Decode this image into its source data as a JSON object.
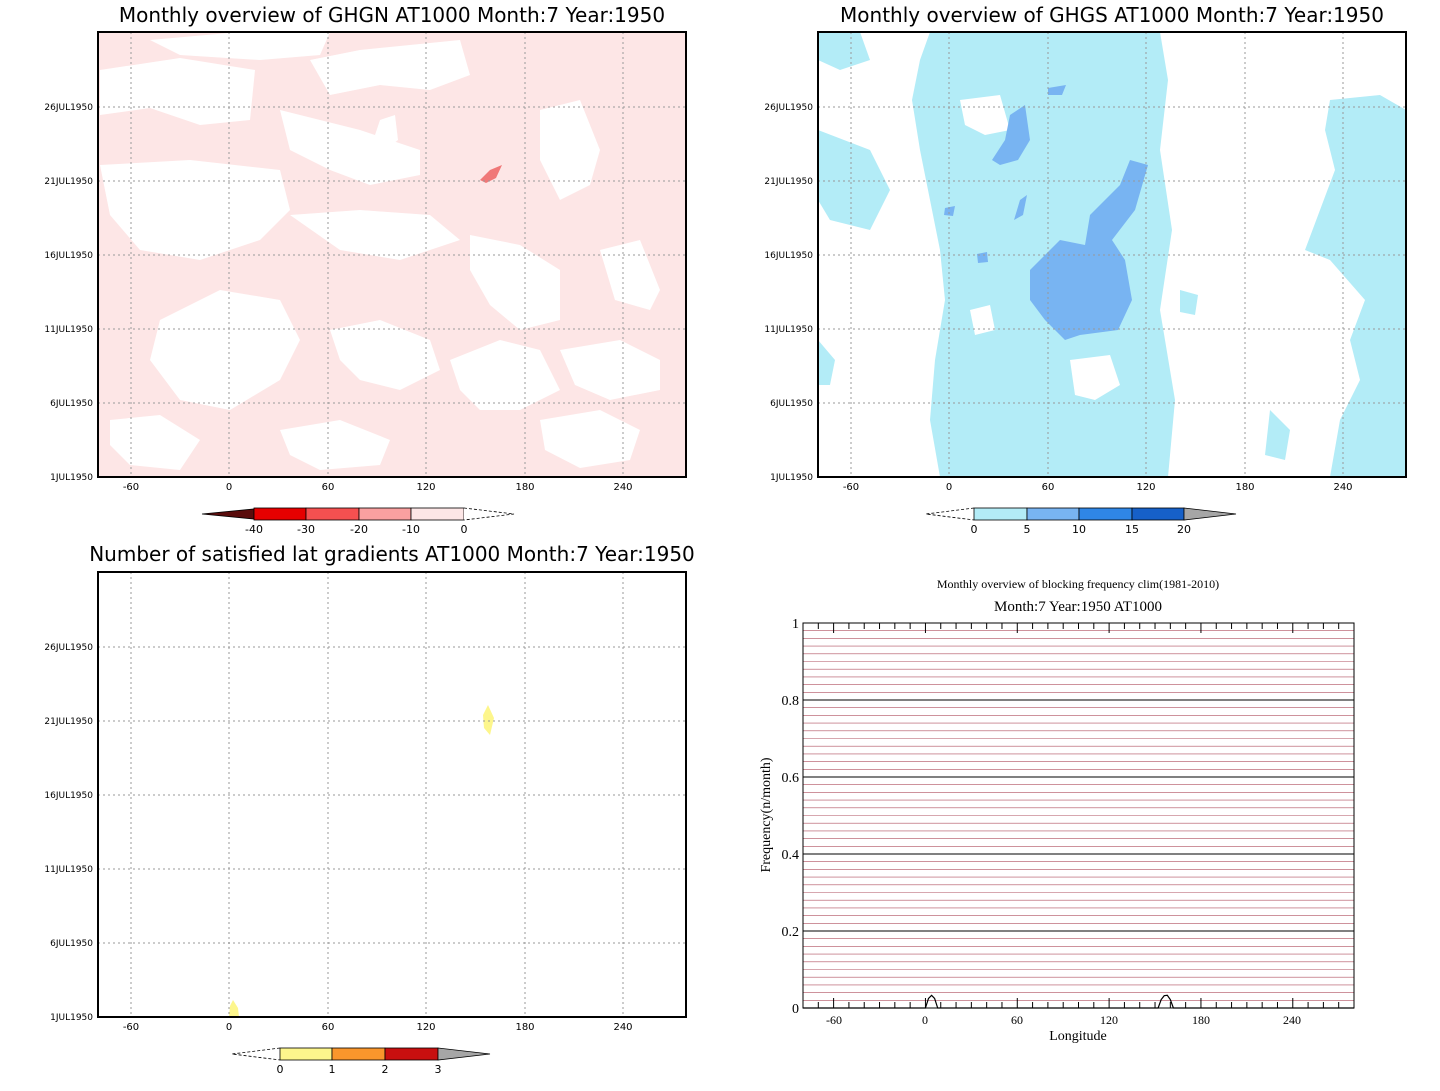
{
  "chart_data": [
    {
      "type": "heatmap",
      "title": "Monthly overview of GHGN AT1000 Month:7 Year:1950",
      "x_ticks": [
        -60,
        0,
        60,
        120,
        180,
        240
      ],
      "y_ticks": [
        "1JUL1950",
        "6JUL1950",
        "11JUL1950",
        "16JUL1950",
        "21JUL1950",
        "26JUL1950"
      ],
      "xlim": [
        -80,
        280
      ],
      "ylim": [
        "1JUL1950",
        "31JUL1950"
      ],
      "grid": true,
      "colorbar": {
        "ticks": [
          "-40",
          "-30",
          "-20",
          "-10",
          "0"
        ],
        "levels": [
          {
            "range": "<-40",
            "color": "#5a0c0c"
          },
          {
            "range": "-40 to -30",
            "color": "#e60000"
          },
          {
            "range": "-30 to -20",
            "color": "#f55050"
          },
          {
            "range": "-20 to -10",
            "color": "#f9a0a0"
          },
          {
            "range": "-10 to 0",
            "color": "#fde6e6"
          },
          {
            "range": ">0",
            "color": "#ffffff"
          }
        ]
      }
    },
    {
      "type": "heatmap",
      "title": "Monthly overview of GHGS AT1000 Month:7 Year:1950",
      "x_ticks": [
        -60,
        0,
        60,
        120,
        180,
        240
      ],
      "y_ticks": [
        "1JUL1950",
        "6JUL1950",
        "11JUL1950",
        "16JUL1950",
        "21JUL1950",
        "26JUL1950"
      ],
      "xlim": [
        -80,
        280
      ],
      "ylim": [
        "1JUL1950",
        "31JUL1950"
      ],
      "grid": true,
      "colorbar": {
        "ticks": [
          "0",
          "5",
          "10",
          "15",
          "20"
        ],
        "levels": [
          {
            "range": "<0",
            "color": "#ffffff"
          },
          {
            "range": "0 to 5",
            "color": "#b3ecf7"
          },
          {
            "range": "5 to 10",
            "color": "#78b4f2"
          },
          {
            "range": "10 to 15",
            "color": "#2f86e6"
          },
          {
            "range": "15 to 20",
            "color": "#1660c8"
          },
          {
            "range": ">20",
            "color": "#a6a6a6"
          }
        ]
      }
    },
    {
      "type": "heatmap",
      "title": "Number of satisfied lat gradients AT1000 Month:7 Year:1950",
      "x_ticks": [
        -60,
        0,
        60,
        120,
        180,
        240
      ],
      "y_ticks": [
        "1JUL1950",
        "6JUL1950",
        "11JUL1950",
        "16JUL1950",
        "21JUL1950",
        "26JUL1950"
      ],
      "xlim": [
        -80,
        280
      ],
      "ylim": [
        "1JUL1950",
        "31JUL1950"
      ],
      "grid": true,
      "colorbar": {
        "ticks": [
          "0",
          "1",
          "2",
          "3"
        ],
        "levels": [
          {
            "range": "<0",
            "color": "#ffffff"
          },
          {
            "range": "0 to 1",
            "color": "#fdf68c"
          },
          {
            "range": "1 to 2",
            "color": "#f9962c"
          },
          {
            "range": "2 to 3",
            "color": "#c80f0f"
          },
          {
            "range": ">3",
            "color": "#a6a6a6"
          }
        ]
      },
      "patches": [
        {
          "lon": 160,
          "date": "21JUL1950",
          "value": 0.5
        },
        {
          "lon": 4,
          "date": "1JUL1950",
          "value": 0.5
        }
      ]
    },
    {
      "type": "line",
      "title": "Monthly overview of blocking frequency clim(1981-2010)",
      "subtitle": "Month:7 Year:1950  AT1000",
      "xlabel": "Longitude",
      "ylabel": "Frequency(n/month)",
      "x_ticks": [
        -60,
        0,
        60,
        120,
        180,
        240
      ],
      "y_ticks": [
        "0",
        "0.2",
        "0.4",
        "0.6",
        "0.8",
        "1"
      ],
      "xlim": [
        -80,
        280
      ],
      "ylim": [
        0,
        1
      ],
      "grid": true,
      "series": [
        {
          "x": [
            -80,
            0,
            2,
            4,
            6,
            8,
            152,
            154,
            156,
            158,
            160,
            162,
            280
          ],
          "values": [
            0,
            0,
            0.025,
            0.033,
            0.025,
            0,
            0,
            0.022,
            0.032,
            0.033,
            0.022,
            0,
            0
          ],
          "color": "#000000"
        }
      ],
      "climatology_lines_color": "#b05060"
    }
  ]
}
